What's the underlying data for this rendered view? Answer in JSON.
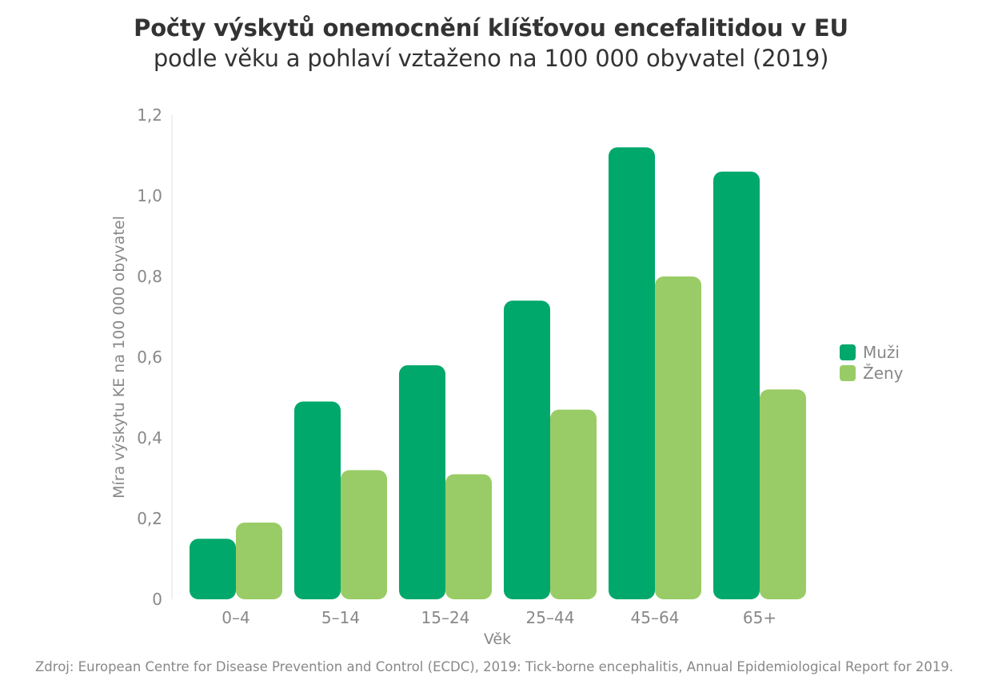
{
  "title": "Počty výskytů onemocnění klíšťovou encefalitidou v EU",
  "subtitle": "podle věku a pohlaví vztaženo na 100 000 obyvatel (2019)",
  "source": "Zdroj: European Centre for Disease Prevention and Control (ECDC), 2019: Tick-borne encephalitis, Annual Epidemiological Report for 2019.",
  "colors": {
    "muzi": "#00a86b",
    "zeny": "#99cc66",
    "axis_text": "#888888",
    "title_text": "#333333"
  },
  "chart_data": {
    "type": "bar",
    "title": "Počty výskytů onemocnění klíšťovou encefalitidou v EU",
    "subtitle": "podle věku a pohlaví vztaženo na 100 000 obyvatel (2019)",
    "xlabel": "Věk",
    "ylabel": "Míra výskytu KE na 100 000 obyvatel",
    "categories": [
      "0–4",
      "5–14",
      "15–24",
      "25–44",
      "45–64",
      "65+"
    ],
    "series": [
      {
        "name": "Muži",
        "color": "#00a86b",
        "values": [
          0.15,
          0.49,
          0.58,
          0.74,
          1.12,
          1.06
        ]
      },
      {
        "name": "Ženy",
        "color": "#99cc66",
        "values": [
          0.19,
          0.32,
          0.31,
          0.47,
          0.8,
          0.52
        ]
      }
    ],
    "ylim": [
      0,
      1.2
    ],
    "yticks": [
      "0",
      "0,2",
      "0,4",
      "0,6",
      "0,8",
      "1,0",
      "1,2"
    ],
    "grid": false,
    "legend_position": "right"
  }
}
